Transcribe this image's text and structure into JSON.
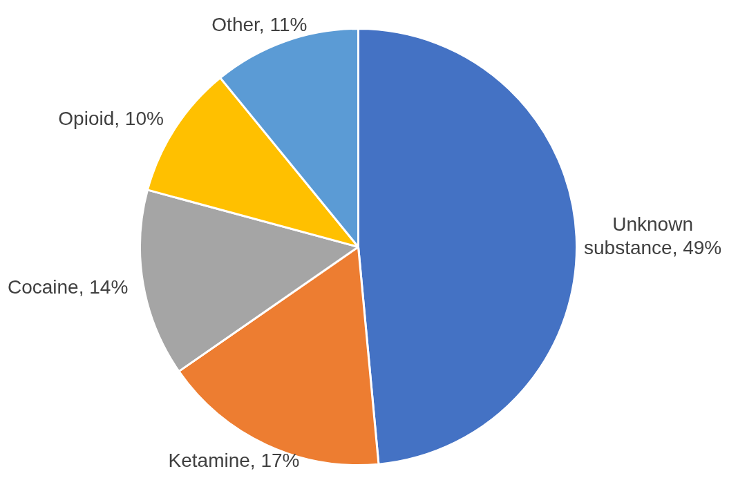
{
  "chart_data": {
    "type": "pie",
    "categories": [
      "Unknown substance",
      "Ketamine",
      "Cocaine",
      "Opioid",
      "Other"
    ],
    "values": [
      49,
      17,
      14,
      10,
      11
    ],
    "value_labels": [
      "49%",
      "17%",
      "14%",
      "10%",
      "11%"
    ],
    "colors": [
      "#4472c4",
      "#ed7d31",
      "#a5a5a5",
      "#ffc000",
      "#5b9bd5"
    ],
    "legend": false
  }
}
